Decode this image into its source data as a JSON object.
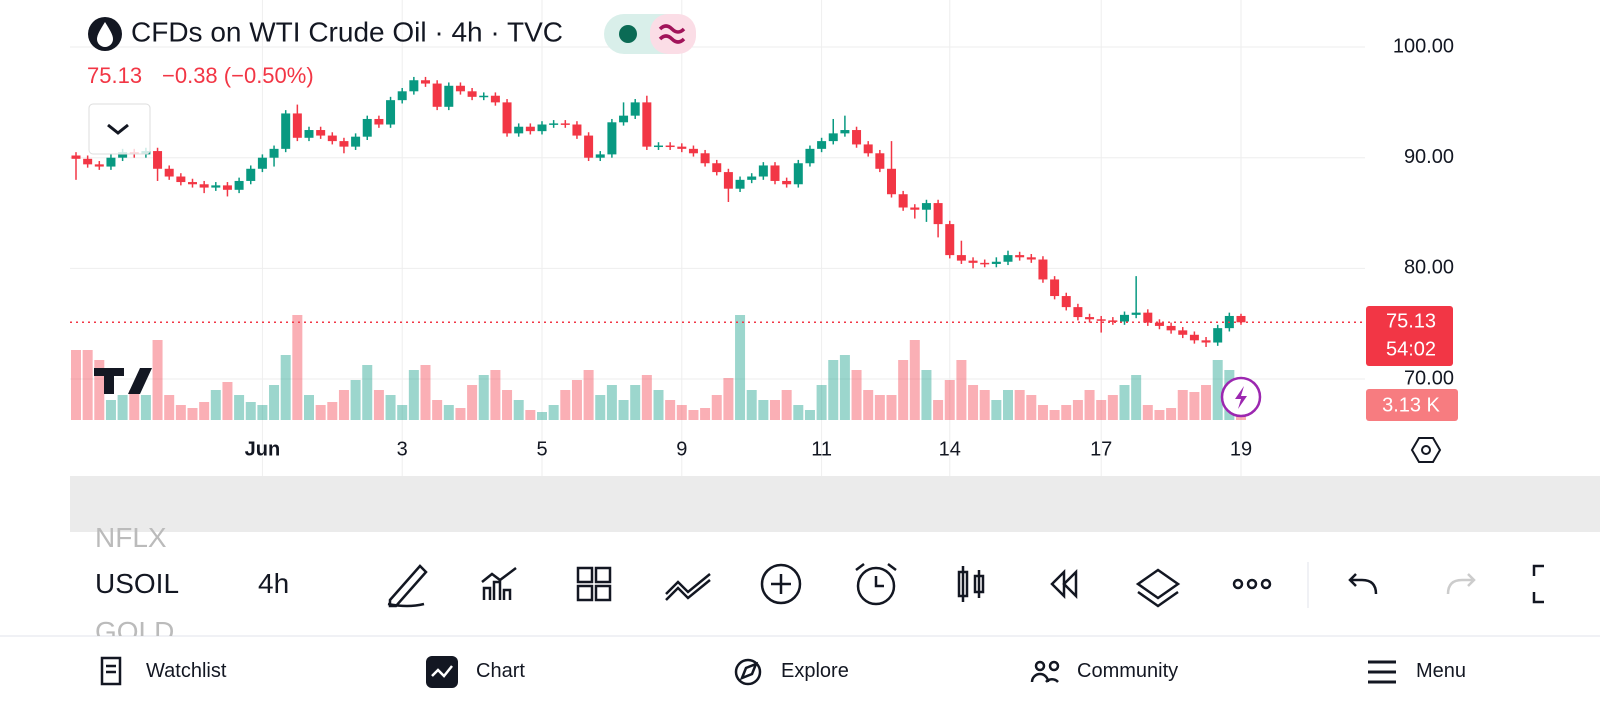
{
  "header": {
    "title": "CFDs on WTI Crude Oil · 4h · TVC",
    "last": "75.13",
    "change": "−0.38 (−0.50%)",
    "countdown": "54:02"
  },
  "chart_data": {
    "type": "candlestick",
    "ylim": [
      66.3,
      104.25
    ],
    "yticks": [
      {
        "value": 100,
        "label": "100.00"
      },
      {
        "value": 90,
        "label": "90.00"
      },
      {
        "value": 80,
        "label": "80.00"
      },
      {
        "value": 70,
        "label": "70.00"
      }
    ],
    "xticks": [
      {
        "value": 16,
        "label": "Jun"
      },
      {
        "value": 28,
        "label": "3"
      },
      {
        "value": 40,
        "label": "5"
      },
      {
        "value": 52,
        "label": "9"
      },
      {
        "value": 64,
        "label": "11"
      },
      {
        "value": 75,
        "label": "14"
      },
      {
        "value": 88,
        "label": "17"
      },
      {
        "value": 100,
        "label": "19"
      }
    ],
    "up_color": "#089981",
    "down_color": "#f23645",
    "grid": true,
    "last_price": 75.13,
    "last_volume_label": "3.13 K",
    "open": [
      90.2,
      89.9,
      89.4,
      89.2,
      90.0,
      90.5,
      90.3,
      90.6,
      89.0,
      88.3,
      87.8,
      87.6,
      87.3,
      87.5,
      87.1,
      87.9,
      89.0,
      90.0,
      90.8,
      94.0,
      91.8,
      92.5,
      92.0,
      91.5,
      91.0,
      91.9,
      93.5,
      93.0,
      95.2,
      96.0,
      97.0,
      96.7,
      94.6,
      96.5,
      96.0,
      95.5,
      95.6,
      95.0,
      92.2,
      92.8,
      92.4,
      93.0,
      93.1,
      93.0,
      92.0,
      90.0,
      90.3,
      93.2,
      93.8,
      95.0,
      91.0,
      91.1,
      91.0,
      90.8,
      90.4,
      89.5,
      88.7,
      87.2,
      88.0,
      88.3,
      89.3,
      87.9,
      87.6,
      89.5,
      90.8,
      91.5,
      92.2,
      92.5,
      91.2,
      90.4,
      89.0,
      86.7,
      85.5,
      85.3,
      85.9,
      84.0,
      81.2,
      80.7,
      80.5,
      80.4,
      80.6,
      81.2,
      81.0,
      80.8,
      79.0,
      77.5,
      76.5,
      75.6,
      75.4,
      75.3,
      75.2,
      75.8,
      76.0,
      75.1,
      74.8,
      74.4,
      74.0,
      73.5,
      73.3,
      74.6,
      75.7
    ],
    "high": [
      90.5,
      90.2,
      89.7,
      90.3,
      90.8,
      90.8,
      90.9,
      90.9,
      89.3,
      88.6,
      88.1,
      87.9,
      87.8,
      87.8,
      88.2,
      89.3,
      90.3,
      91.1,
      94.3,
      94.8,
      92.8,
      92.8,
      92.3,
      91.8,
      92.2,
      93.8,
      93.8,
      95.5,
      96.3,
      97.3,
      97.3,
      97.0,
      96.8,
      96.8,
      96.3,
      95.9,
      95.9,
      95.3,
      93.1,
      93.1,
      93.3,
      93.4,
      93.4,
      93.3,
      92.3,
      90.6,
      93.5,
      95.0,
      95.3,
      95.6,
      91.4,
      91.4,
      91.3,
      91.1,
      90.7,
      89.8,
      89.0,
      88.3,
      88.6,
      89.6,
      89.6,
      88.2,
      89.8,
      91.1,
      91.8,
      93.5,
      93.8,
      92.8,
      91.5,
      90.7,
      91.5,
      87.0,
      85.8,
      86.2,
      86.2,
      84.3,
      82.5,
      81.0,
      80.8,
      81.0,
      81.6,
      81.5,
      81.3,
      81.1,
      79.3,
      77.8,
      76.8,
      75.9,
      75.7,
      75.6,
      76.1,
      79.3,
      76.3,
      75.4,
      75.1,
      74.7,
      74.3,
      73.8,
      74.9,
      76.0,
      75.9
    ],
    "low": [
      88.0,
      89.1,
      88.9,
      88.9,
      89.7,
      90.0,
      90.0,
      87.9,
      88.0,
      87.5,
      87.3,
      86.8,
      87.0,
      86.5,
      86.8,
      87.6,
      88.7,
      89.2,
      90.5,
      91.5,
      91.5,
      91.7,
      91.2,
      90.4,
      90.7,
      91.6,
      92.7,
      92.7,
      94.9,
      95.7,
      96.4,
      94.3,
      94.3,
      95.7,
      95.2,
      95.2,
      94.7,
      91.9,
      91.9,
      92.1,
      92.1,
      92.7,
      92.7,
      91.7,
      89.7,
      89.7,
      90.0,
      92.9,
      93.5,
      90.7,
      90.7,
      90.7,
      90.5,
      90.1,
      89.2,
      88.4,
      86.0,
      86.9,
      87.7,
      88.0,
      87.6,
      87.3,
      87.3,
      89.2,
      90.5,
      91.2,
      91.9,
      90.9,
      90.1,
      88.7,
      86.4,
      85.2,
      84.5,
      84.2,
      82.8,
      80.9,
      80.4,
      80.0,
      80.1,
      80.1,
      80.3,
      80.7,
      80.5,
      78.7,
      77.2,
      76.2,
      75.3,
      75.1,
      74.2,
      74.9,
      74.9,
      75.5,
      74.8,
      74.5,
      74.1,
      73.7,
      73.2,
      72.9,
      73.0,
      74.3,
      74.9
    ],
    "close": [
      89.9,
      89.4,
      89.2,
      90.0,
      90.5,
      90.3,
      90.6,
      89.0,
      88.3,
      87.8,
      87.6,
      87.3,
      87.5,
      87.1,
      87.9,
      89.0,
      90.0,
      90.8,
      94.0,
      91.8,
      92.5,
      92.0,
      91.5,
      91.0,
      91.9,
      93.5,
      93.0,
      95.2,
      96.0,
      97.0,
      96.7,
      94.6,
      96.5,
      96.0,
      95.5,
      95.6,
      95.0,
      92.2,
      92.8,
      92.4,
      93.0,
      93.1,
      93.0,
      92.0,
      90.0,
      90.3,
      93.2,
      93.8,
      95.0,
      91.0,
      91.1,
      91.0,
      90.8,
      90.4,
      89.5,
      88.7,
      87.2,
      88.0,
      88.3,
      89.3,
      87.9,
      87.6,
      89.5,
      90.8,
      91.5,
      92.2,
      92.5,
      91.2,
      90.4,
      89.0,
      86.7,
      85.5,
      85.3,
      85.9,
      84.0,
      81.2,
      80.7,
      80.5,
      80.4,
      80.6,
      81.2,
      81.0,
      80.8,
      79.0,
      77.5,
      76.5,
      75.6,
      75.4,
      75.3,
      75.2,
      75.8,
      76.0,
      75.1,
      74.8,
      74.4,
      74.0,
      73.5,
      73.3,
      74.6,
      75.7,
      75.13
    ],
    "volume": [
      8050,
      8050,
      6900,
      2300,
      2875,
      3450,
      2875,
      9200,
      2875,
      1725,
      1380,
      2070,
      3450,
      4370,
      2875,
      2070,
      1725,
      4025,
      7475,
      12075,
      2875,
      1725,
      2070,
      3450,
      4600,
      6325,
      3450,
      2875,
      1725,
      5750,
      6325,
      2300,
      1725,
      1380,
      4025,
      5175,
      5750,
      3450,
      2300,
      1150,
      920,
      1725,
      3450,
      4600,
      5750,
      2875,
      4025,
      2300,
      4025,
      5175,
      3450,
      2300,
      1725,
      1150,
      1380,
      2875,
      4830,
      12075,
      3450,
      2300,
      2300,
      3450,
      1725,
      1150,
      4025,
      6900,
      7475,
      5750,
      3450,
      2875,
      2875,
      6900,
      9200,
      5750,
      2300,
      4600,
      6900,
      4025,
      3450,
      2300,
      3450,
      3450,
      2875,
      1725,
      1150,
      1725,
      2300,
      3450,
      2300,
      2875,
      4025,
      5175,
      1725,
      1150,
      1380,
      3450,
      3220,
      4025,
      6900,
      5750,
      3130
    ]
  },
  "toolbar": {
    "symbols": [
      "NFLX",
      "USOIL",
      "GOLD"
    ],
    "interval": "4h"
  },
  "nav": [
    "Watchlist",
    "Chart",
    "Explore",
    "Community",
    "Menu"
  ]
}
